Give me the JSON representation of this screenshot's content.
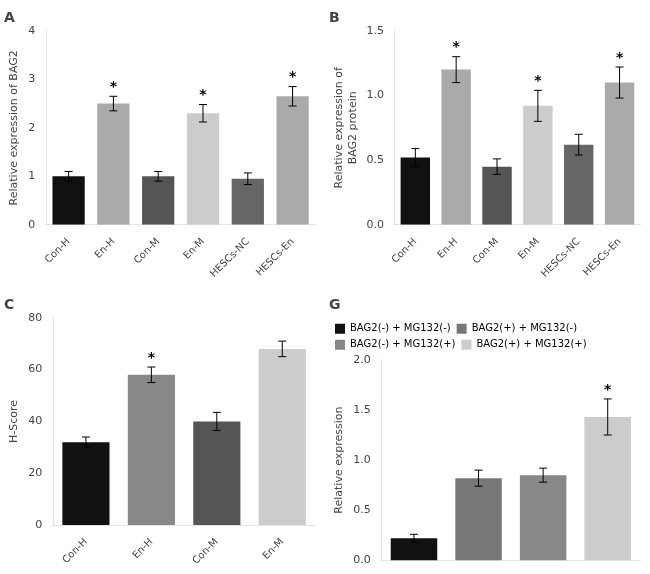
{
  "chart_data": [
    {
      "type": "bar",
      "title": "A",
      "ylabel": "Relative expression of BAG2",
      "categories": [
        "Con-H",
        "En-H",
        "Con-M",
        "En-M",
        "HESCs-NC",
        "HESCs-En"
      ],
      "values": [
        1.0,
        2.5,
        1.0,
        2.3,
        0.95,
        2.65
      ],
      "errors": [
        0.1,
        0.15,
        0.1,
        0.18,
        0.12,
        0.2
      ],
      "colors": [
        "#111111",
        "#aaaaaa",
        "#555555",
        "#cccccc",
        "#666666",
        "#aaaaaa"
      ],
      "ylim": [
        0,
        4
      ],
      "yticks": [
        0,
        1,
        2,
        3,
        4
      ],
      "grid": false,
      "annotations": [
        {
          "category": "En-H",
          "text": "*"
        },
        {
          "category": "En-M",
          "text": "*"
        },
        {
          "category": "HESCs-En",
          "text": "*"
        }
      ]
    },
    {
      "type": "bar",
      "title": "B",
      "ylabel": "Relative expression of\nBAG2 protein",
      "categories": [
        "Con-H",
        "En-H",
        "Con-M",
        "En-M",
        "HESCs-NC",
        "HESCs-En"
      ],
      "values": [
        0.52,
        1.2,
        0.45,
        0.92,
        0.62,
        1.1
      ],
      "errors": [
        0.07,
        0.1,
        0.06,
        0.12,
        0.08,
        0.12
      ],
      "colors": [
        "#111111",
        "#aaaaaa",
        "#555555",
        "#cccccc",
        "#666666",
        "#aaaaaa"
      ],
      "ylim": [
        0,
        1.5
      ],
      "yticks": [
        {
          "value": 0.0,
          "label": "0.0"
        },
        0.5,
        {
          "value": 1.0,
          "label": "1.0"
        },
        1.5
      ],
      "grid": false,
      "annotations": [
        {
          "category": "En-H",
          "text": "*"
        },
        {
          "category": "En-M",
          "text": "*"
        },
        {
          "category": "HESCs-En",
          "text": "*"
        }
      ]
    },
    {
      "type": "bar",
      "title": "C",
      "ylabel": "H-Score",
      "categories": [
        "Con-H",
        "En-H",
        "Con-M",
        "En-M"
      ],
      "values": [
        32,
        58,
        40,
        68
      ],
      "errors": [
        2.0,
        3.0,
        3.5,
        3.0
      ],
      "colors": [
        "#111111",
        "#888888",
        "#555555",
        "#cccccc"
      ],
      "ylim": [
        0,
        80
      ],
      "yticks": [
        0,
        20,
        40,
        60,
        80
      ],
      "grid": false,
      "annotations": [
        {
          "category": "En-H",
          "text": "*"
        }
      ]
    },
    {
      "type": "bar",
      "title": "G",
      "ylabel": "Relative expression",
      "categories": [
        "BAG2(-) + MG132(-)",
        "BAG2(+) + MG132(-)",
        "BAG2(-) + MG132(+)",
        "BAG2(+) + MG132(+)"
      ],
      "values": [
        0.22,
        0.82,
        0.85,
        1.43
      ],
      "errors": [
        0.04,
        0.08,
        0.07,
        0.18
      ],
      "colors": [
        "#111111",
        "#777777",
        "#888888",
        "#cccccc"
      ],
      "ylim": [
        0,
        2.0
      ],
      "yticks": [
        {
          "value": 0.0,
          "label": "0.0"
        },
        0.5,
        {
          "value": 1.0,
          "label": "1.0"
        },
        1.5,
        {
          "value": 2.0,
          "label": "2.0"
        }
      ],
      "grid": false,
      "tick_labels": "y",
      "legend": "upper left",
      "annotations": [
        {
          "category": "BAG2(+) + MG132(+)",
          "text": "*"
        }
      ]
    }
  ]
}
